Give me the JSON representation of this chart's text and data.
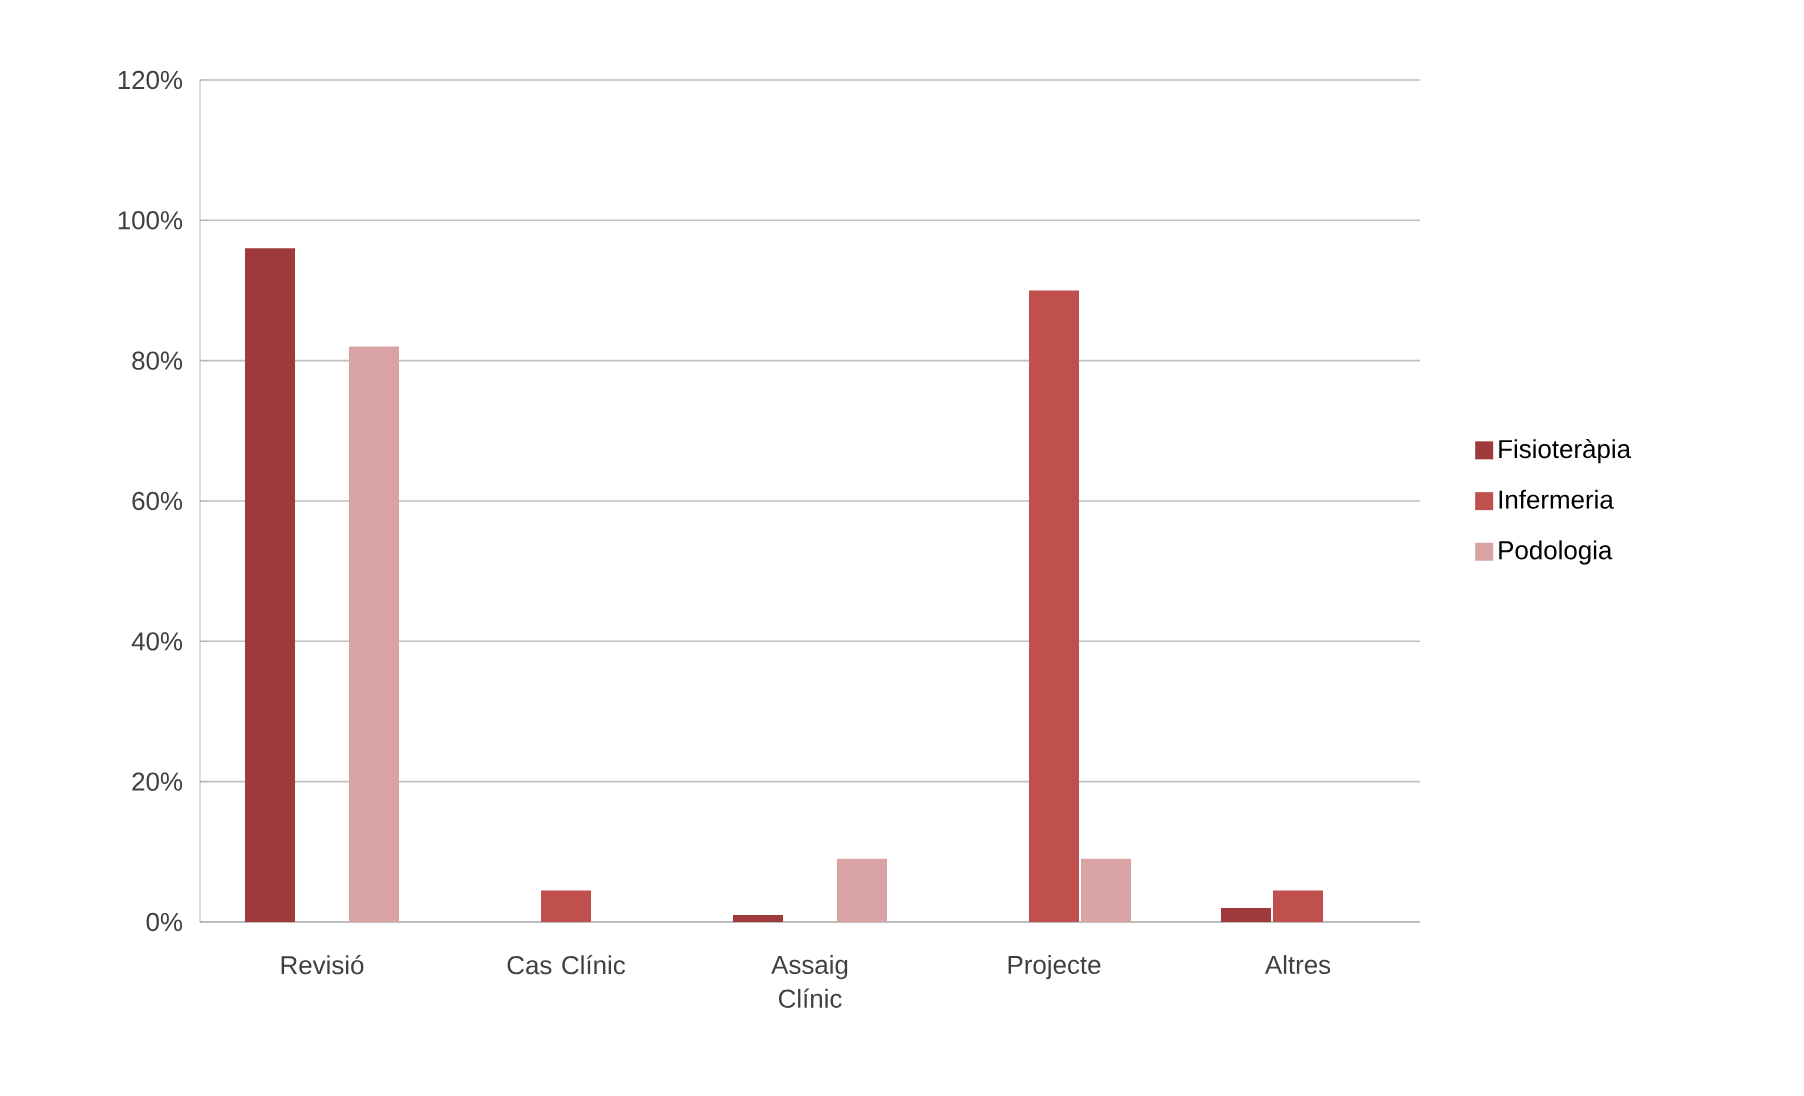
{
  "chart_data": {
    "type": "bar",
    "categories": [
      "Revisió",
      "Cas Clínic",
      "Assaig Clínic",
      "Projecte",
      "Altres"
    ],
    "series": [
      {
        "name": "Fisioteràpia",
        "color": "#9e3a3c",
        "values": [
          96,
          0,
          1,
          0,
          2
        ]
      },
      {
        "name": "Infermeria",
        "color": "#c0504d",
        "values": [
          0,
          4.5,
          0,
          90,
          4.5
        ]
      },
      {
        "name": "Podologia",
        "color": "#d9a3a4",
        "values": [
          82,
          0,
          9,
          9,
          0
        ]
      }
    ],
    "ylim": [
      0,
      120
    ],
    "yticks": [
      {
        "value": 0,
        "label": "0%"
      },
      {
        "value": 20,
        "label": "20%"
      },
      {
        "value": 40,
        "label": "40%"
      },
      {
        "value": 60,
        "label": "60%"
      },
      {
        "value": 80,
        "label": "80%"
      },
      {
        "value": 100,
        "label": "100%"
      },
      {
        "value": 120,
        "label": "120%"
      }
    ],
    "grid": "y",
    "legend": "right"
  }
}
